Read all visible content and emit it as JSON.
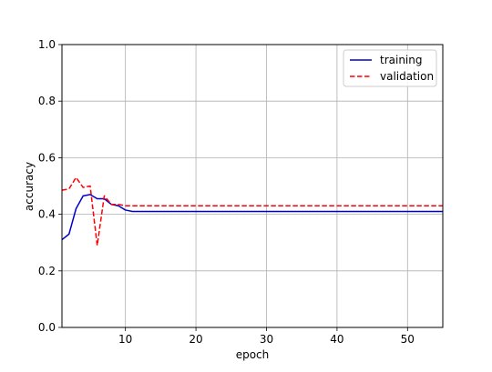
{
  "chart_data": {
    "type": "line",
    "title": "",
    "xlabel": "epoch",
    "ylabel": "accuracy",
    "xlim": [
      1,
      55
    ],
    "ylim": [
      0.0,
      1.0
    ],
    "xticks": [
      10,
      20,
      30,
      40,
      50
    ],
    "yticks": [
      0.0,
      0.2,
      0.4,
      0.6,
      0.8,
      1.0
    ],
    "grid": true,
    "legend_position": "top-right",
    "series": [
      {
        "name": "training",
        "color": "#0000cc",
        "style": "solid",
        "x": [
          1,
          2,
          3,
          4,
          5,
          6,
          7,
          8,
          9,
          10,
          11,
          55
        ],
        "y": [
          0.31,
          0.33,
          0.42,
          0.465,
          0.47,
          0.455,
          0.455,
          0.435,
          0.43,
          0.415,
          0.41,
          0.41
        ]
      },
      {
        "name": "validation",
        "color": "#ff0000",
        "style": "dashed",
        "x": [
          1,
          2,
          3,
          4,
          5,
          6,
          7,
          8,
          9,
          10,
          11,
          55
        ],
        "y": [
          0.485,
          0.49,
          0.53,
          0.495,
          0.5,
          0.29,
          0.465,
          0.435,
          0.435,
          0.43,
          0.43,
          0.43
        ]
      }
    ]
  }
}
